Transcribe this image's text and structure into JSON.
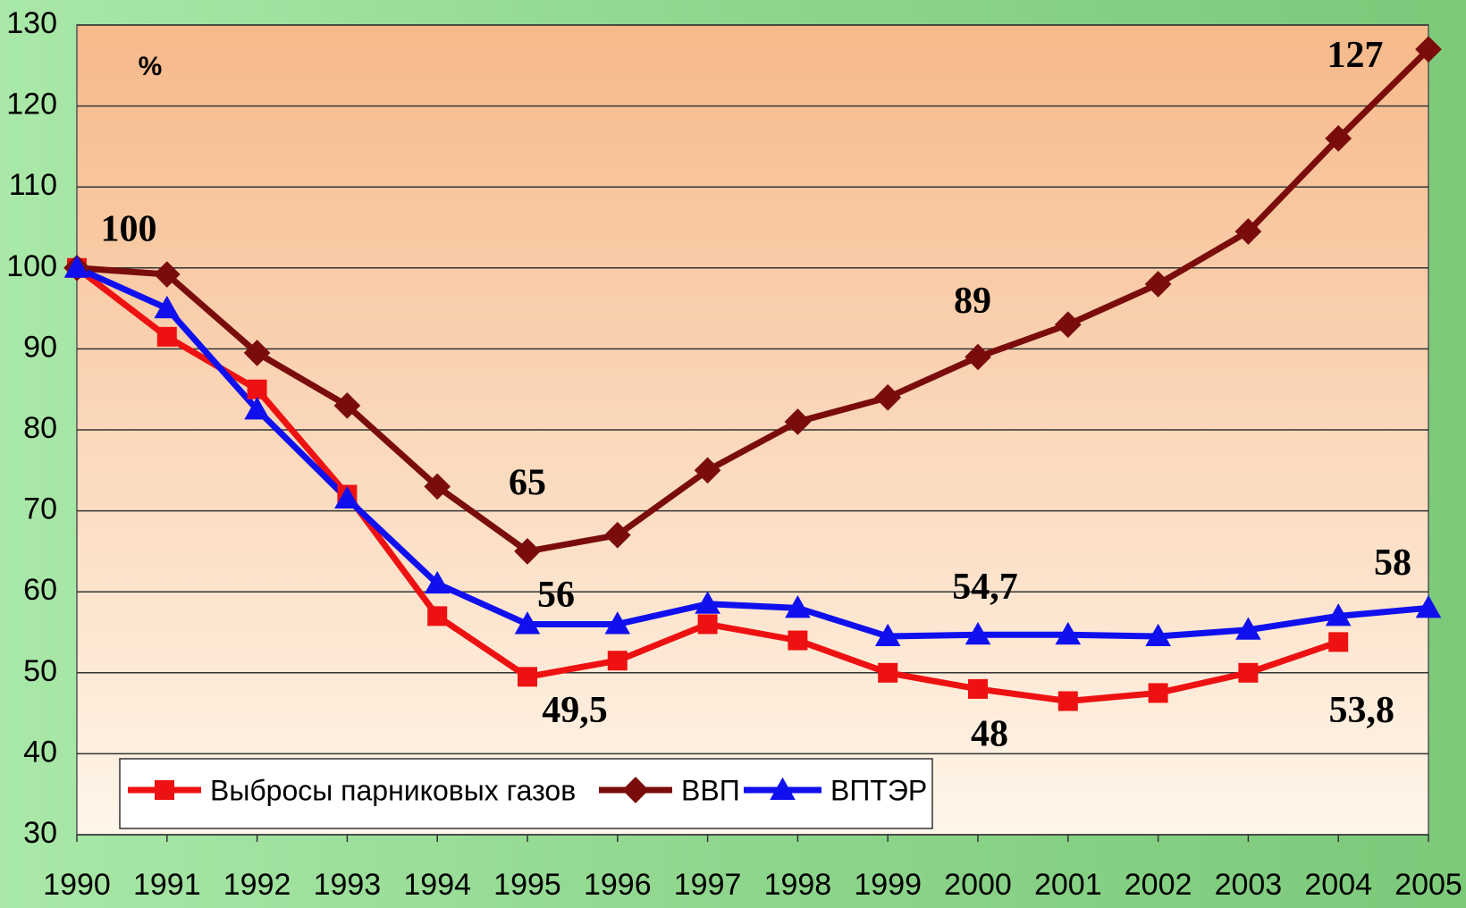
{
  "chart_data": {
    "type": "line",
    "annotations": [
      "%"
    ],
    "categories": [
      "1990",
      "1991",
      "1992",
      "1993",
      "1994",
      "1995",
      "1996",
      "1997",
      "1998",
      "1999",
      "2000",
      "2001",
      "2002",
      "2003",
      "2004",
      "2005"
    ],
    "series": [
      {
        "name": "Выбросы парниковых газов",
        "color": "#ee1111",
        "marker": "square",
        "values": [
          100,
          91.5,
          85,
          72,
          57,
          49.5,
          51.5,
          56,
          54,
          50,
          48,
          46.5,
          47.5,
          50,
          53.8,
          null
        ],
        "value_labels": [
          null,
          null,
          null,
          null,
          null,
          "49,5",
          null,
          null,
          null,
          null,
          "48",
          null,
          null,
          null,
          "53,8",
          null
        ]
      },
      {
        "name": "ВВП",
        "color": "#7a0c0c",
        "marker": "diamond",
        "values": [
          100,
          99.2,
          89.5,
          83,
          73,
          65,
          67,
          75,
          81,
          84,
          89,
          93,
          98,
          104.5,
          116,
          127
        ],
        "value_labels": [
          "100",
          null,
          null,
          null,
          null,
          "65",
          null,
          null,
          null,
          null,
          "89",
          null,
          null,
          null,
          null,
          "127"
        ]
      },
      {
        "name": "ВПТЭР",
        "color": "#1010ee",
        "marker": "triangle",
        "values": [
          100,
          95,
          82.5,
          71.5,
          61,
          56,
          56,
          58.5,
          58,
          54.5,
          54.7,
          54.7,
          54.5,
          55.3,
          57,
          58
        ],
        "value_labels": [
          null,
          null,
          null,
          null,
          null,
          "56",
          null,
          null,
          null,
          null,
          "54,7",
          null,
          null,
          null,
          null,
          "58"
        ]
      }
    ],
    "ylim": [
      30,
      130
    ],
    "yticks": [
      30,
      40,
      50,
      60,
      70,
      80,
      90,
      100,
      110,
      120,
      130
    ],
    "grid": true,
    "legend": "lower left"
  }
}
